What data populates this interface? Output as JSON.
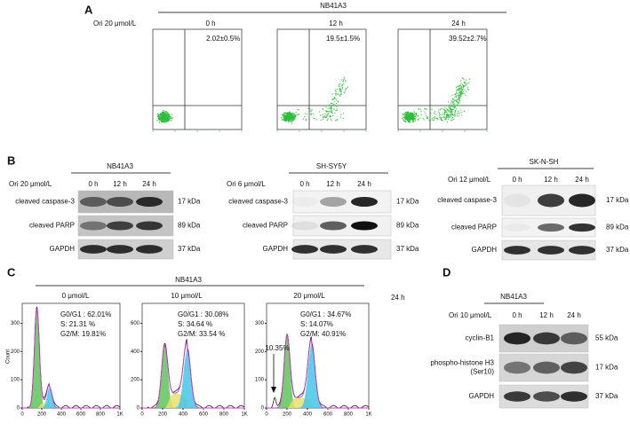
{
  "panel_a": {
    "label": "A",
    "cell_line": "NB41A3",
    "treatment": "Ori 20 μmol/L",
    "timepoints": [
      "0 h",
      "12 h",
      "24 h"
    ],
    "apoptosis": [
      "2.02±0.5%",
      "19.5±1.5%",
      "39.52±2.7%"
    ]
  },
  "panel_b": {
    "label": "B",
    "blots": [
      {
        "cell_line": "NB41A3",
        "treatment": "Ori 20 μmol/L",
        "timepoints": [
          "0 h",
          "12 h",
          "24 h"
        ],
        "rows": [
          {
            "protein": "cleaved caspase-3",
            "size": "17 kDa"
          },
          {
            "protein": "cleaved PARP",
            "size": "89 kDa"
          },
          {
            "protein": "GAPDH",
            "size": "37 kDa"
          }
        ]
      },
      {
        "cell_line": "SH-SY5Y",
        "treatment": "Ori 6 μmol/L",
        "timepoints": [
          "0 h",
          "12 h",
          "24 h"
        ],
        "rows": [
          {
            "protein": "cleaved caspase-3",
            "size": "17 kDa"
          },
          {
            "protein": "cleaved PARP",
            "size": "89 kDa"
          },
          {
            "protein": "GAPDH",
            "size": "37 kDa"
          }
        ]
      },
      {
        "cell_line": "SK-N-SH",
        "treatment": "Ori 12 μmol/L",
        "timepoints": [
          "0 h",
          "12 h",
          "24 h"
        ],
        "rows": [
          {
            "protein": "cleaved caspase-3",
            "size": "17 kDa"
          },
          {
            "protein": "cleaved PARP",
            "size": "89 kDa"
          },
          {
            "protein": "GAPDH",
            "size": "37 kDa"
          }
        ]
      }
    ]
  },
  "panel_c": {
    "label": "C",
    "cell_line": "NB41A3",
    "time": "24 h",
    "y_axis_label": "Count",
    "x_ticks": [
      "0",
      "200",
      "400",
      "600",
      "800",
      "1K"
    ],
    "sub_g1": "10.35%",
    "histograms": [
      {
        "dose": "0 μmol/L",
        "y_ticks": [
          "0",
          "100",
          "200",
          "300"
        ],
        "stats": [
          "G0/G1 : 62.01%",
          "S: 21.31 %",
          "G2/M: 19.81%"
        ]
      },
      {
        "dose": "10 μmol/L",
        "y_ticks": [
          "0",
          "200",
          "400",
          "600"
        ],
        "stats": [
          "G0/G1 : 30.08%",
          "S: 34.64 %",
          "G2/M: 33.54 %"
        ]
      },
      {
        "dose": "20 μmol/L",
        "y_ticks": [
          "0",
          "100",
          "200",
          "300"
        ],
        "stats": [
          "G0/G1 : 34.67%",
          "S: 14.07%",
          "G2/M: 40.91%"
        ]
      }
    ]
  },
  "panel_d": {
    "label": "D",
    "cell_line": "NB41A3",
    "treatment": "Ori 10 μmol/L",
    "timepoints": [
      "0 h",
      "12 h",
      "24 h"
    ],
    "rows": [
      {
        "protein": [
          "cyclin-B1"
        ],
        "size": "55 kDa"
      },
      {
        "protein": [
          "phospho-histone H3",
          "(Ser10)"
        ],
        "size": "17 kDa"
      },
      {
        "protein": [
          "GAPDH"
        ],
        "size": "37 kDa"
      }
    ]
  }
}
